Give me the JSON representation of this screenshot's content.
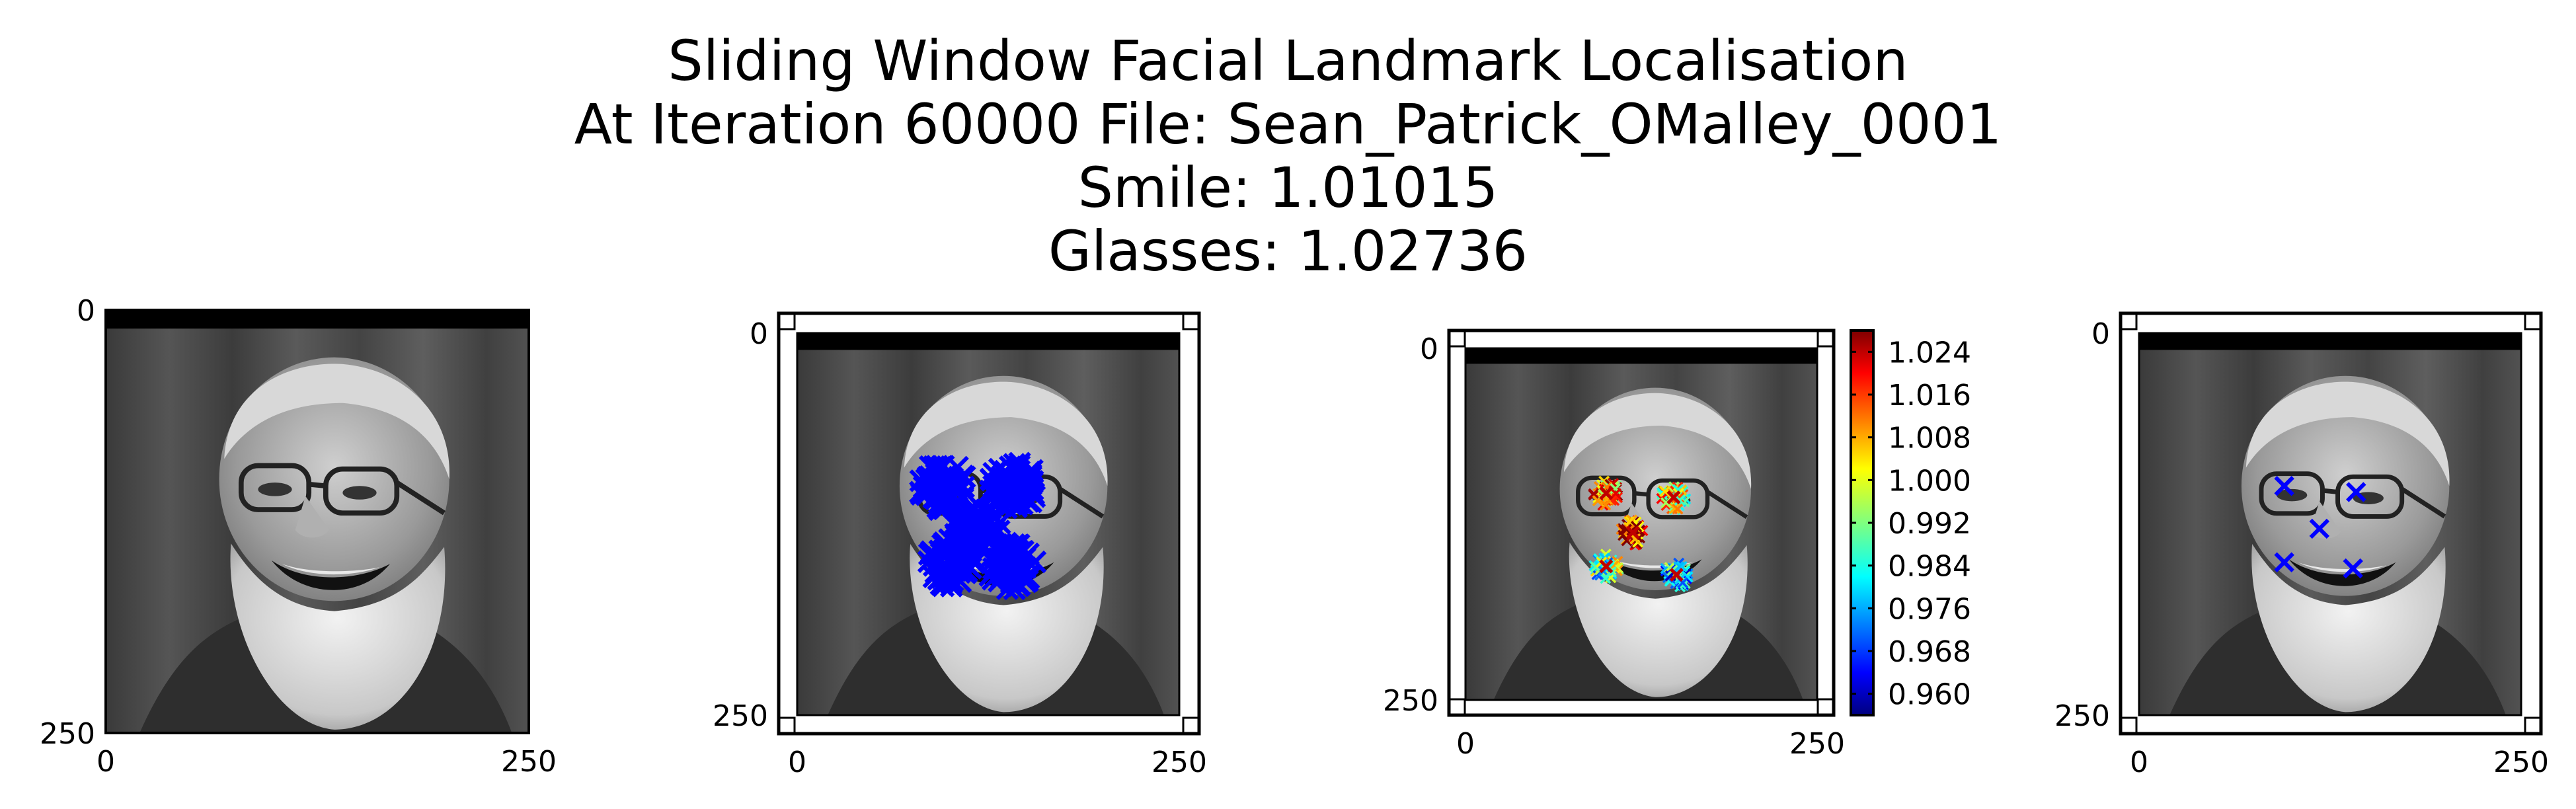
{
  "title_lines": [
    "Sliding Window Facial Landmark Localisation",
    "At Iteration 60000 File: Sean_Patrick_OMalley_0001",
    "Smile: 1.01015",
    "Glasses: 1.02736"
  ],
  "colors": {
    "marker_blue": "#0000ff",
    "frame": "#000000",
    "background": "#ffffff"
  },
  "chart_data": [
    {
      "type": "image",
      "panel": 1,
      "xlim": [
        0,
        250
      ],
      "ylim": [
        250,
        0
      ],
      "x_ticks": [
        "0",
        "250"
      ],
      "y_ticks": [
        "0",
        "250"
      ]
    },
    {
      "type": "scatter",
      "panel": 2,
      "xlim": [
        0,
        250
      ],
      "ylim": [
        250,
        0
      ],
      "x_ticks": [
        "0",
        "250"
      ],
      "y_ticks": [
        "0",
        "250"
      ],
      "marker": "x",
      "color": "#0000ff",
      "clusters": [
        {
          "x": 95,
          "y": 100
        },
        {
          "x": 142,
          "y": 100
        },
        {
          "x": 118,
          "y": 128
        },
        {
          "x": 100,
          "y": 150
        },
        {
          "x": 140,
          "y": 152
        }
      ]
    },
    {
      "type": "scatter",
      "panel": 3,
      "xlim": [
        0,
        250
      ],
      "ylim": [
        250,
        0
      ],
      "x_ticks": [
        "0",
        "250"
      ],
      "y_ticks": [
        "0",
        "250"
      ],
      "marker": "x",
      "colormap": "jet",
      "colorbar": {
        "min": 0.956,
        "max": 1.028,
        "ticks": [
          "1.024",
          "1.016",
          "1.008",
          "1.000",
          "0.992",
          "0.984",
          "0.976",
          "0.968",
          "0.960"
        ]
      },
      "clusters": [
        {
          "x": 100,
          "y": 103,
          "value": 1.01
        },
        {
          "x": 148,
          "y": 106,
          "value": 1.0
        },
        {
          "x": 119,
          "y": 131,
          "value": 1.02
        },
        {
          "x": 100,
          "y": 155,
          "value": 0.99
        },
        {
          "x": 150,
          "y": 161,
          "value": 0.98
        }
      ]
    },
    {
      "type": "scatter",
      "panel": 4,
      "xlim": [
        0,
        250
      ],
      "ylim": [
        250,
        0
      ],
      "x_ticks": [
        "0",
        "250"
      ],
      "y_ticks": [
        "0",
        "250"
      ],
      "marker": "x",
      "color": "#0000ff",
      "points": [
        {
          "x": 95,
          "y": 100
        },
        {
          "x": 142,
          "y": 104
        },
        {
          "x": 118,
          "y": 128
        },
        {
          "x": 95,
          "y": 150
        },
        {
          "x": 140,
          "y": 154
        }
      ]
    }
  ]
}
